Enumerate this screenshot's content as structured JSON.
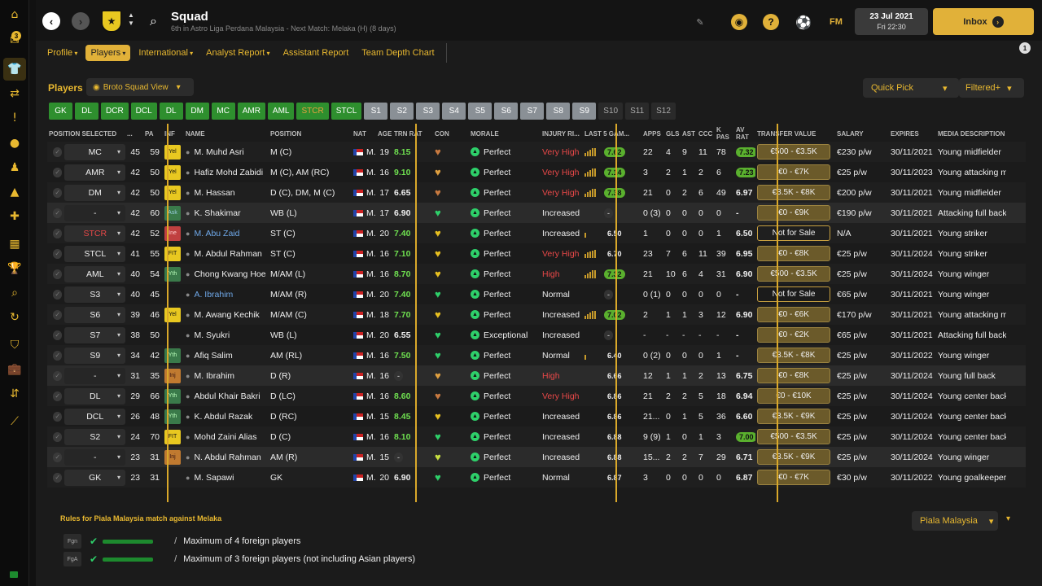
{
  "header": {
    "title": "Squad",
    "subtitle": "6th in Astro Liga Perdana Malaysia - Next Match: Melaka (H) (8 days)",
    "date": "23 Jul 2021",
    "time": "Fri 22:30",
    "inbox_label": "Inbox",
    "fm_label": "FM",
    "sidebar_badge": "3",
    "side_badge": "1"
  },
  "subnav": [
    {
      "label": "Profile",
      "dd": true
    },
    {
      "label": "Players",
      "dd": true,
      "active": true
    },
    {
      "label": "International",
      "dd": true
    },
    {
      "label": "Analyst Report",
      "dd": true
    },
    {
      "label": "Assistant Report",
      "dd": false
    },
    {
      "label": "Team Depth Chart",
      "dd": false
    }
  ],
  "players_label": "Players",
  "view_label": "Broto Squad View",
  "quick_pick": "Quick Pick",
  "filtered": "Filtered+",
  "position_tabs": [
    {
      "label": "GK",
      "s": "g"
    },
    {
      "label": "DL",
      "s": "g"
    },
    {
      "label": "DCR",
      "s": "g"
    },
    {
      "label": "DCL",
      "s": "g"
    },
    {
      "label": "DL",
      "s": "g"
    },
    {
      "label": "DM",
      "s": "g"
    },
    {
      "label": "MC",
      "s": "g"
    },
    {
      "label": "AMR",
      "s": "g"
    },
    {
      "label": "AML",
      "s": "g"
    },
    {
      "label": "STCR",
      "s": "gs"
    },
    {
      "label": "STCL",
      "s": "g"
    },
    {
      "label": "S1",
      "s": "s"
    },
    {
      "label": "S2",
      "s": "s"
    },
    {
      "label": "S3",
      "s": "s"
    },
    {
      "label": "S4",
      "s": "s"
    },
    {
      "label": "S5",
      "s": "s"
    },
    {
      "label": "S6",
      "s": "s"
    },
    {
      "label": "S7",
      "s": "s"
    },
    {
      "label": "S8",
      "s": "s"
    },
    {
      "label": "S9",
      "s": "s"
    },
    {
      "label": "S10",
      "s": "d"
    },
    {
      "label": "S11",
      "s": "d"
    },
    {
      "label": "S12",
      "s": "d"
    }
  ],
  "columns": [
    "POSITION SELECTED",
    "...",
    "PA",
    "INF",
    "NAME",
    "POSITION",
    "NAT",
    "AGE",
    "TRN RAT",
    "CON",
    "MORALE",
    "INJURY RI...",
    "LAST 5 GAM...",
    "APPS",
    "GLS",
    "AST",
    "CCC",
    "K PAS",
    "AV RAT",
    "TRANSFER VALUE",
    "SALARY",
    "EXPIRES",
    "MEDIA DESCRIPTION"
  ],
  "nat_text": "M...",
  "players": [
    {
      "pos": "MC",
      "ca": "45",
      "pa": "59",
      "inf": "Yel",
      "name": "M. Muhd Asri",
      "position": "M (C)",
      "age": "19",
      "trn": "8.15",
      "trn_c": "gr",
      "con": "#c87a40",
      "morale": "Perfect",
      "inj": "Very High",
      "inj_c": "red",
      "form": [
        4,
        6,
        8,
        10,
        10
      ],
      "last5": "7.62",
      "last5_c": "g",
      "apps": "22",
      "gls": "4",
      "ast": "9",
      "ccc": "11",
      "kpas": "78",
      "av": "7.32",
      "av_c": "g",
      "tv": "€500 - €3.5K",
      "salary": "€230 p/w",
      "exp": "30/11/2021",
      "desc": "Young midfielder"
    },
    {
      "pos": "AMR",
      "ca": "42",
      "pa": "50",
      "inf": "Yel",
      "name": "Hafiz Mohd Zabidi",
      "position": "M (C), AM (RC)",
      "age": "16",
      "trn": "9.10",
      "trn_c": "gr",
      "con": "#e0a040",
      "morale": "Perfect",
      "inj": "Very High",
      "inj_c": "red",
      "form": [
        4,
        6,
        8,
        10,
        10
      ],
      "last5": "7.14",
      "last5_c": "g",
      "apps": "3",
      "gls": "2",
      "ast": "1",
      "ccc": "2",
      "kpas": "6",
      "av": "7.23",
      "av_c": "g",
      "tv": "€0 - €7K",
      "salary": "€25 p/w",
      "exp": "30/11/2023",
      "desc": "Young attacking midfielder"
    },
    {
      "pos": "DM",
      "ca": "42",
      "pa": "50",
      "inf": "Yel",
      "name": "M. Hassan",
      "position": "D (C), DM, M (C)",
      "age": "17",
      "trn": "6.65",
      "trn_c": "",
      "con": "#c87a40",
      "morale": "Perfect",
      "inj": "Very High",
      "inj_c": "red",
      "form": [
        4,
        6,
        8,
        10,
        10
      ],
      "last5": "7.38",
      "last5_c": "g",
      "apps": "21",
      "gls": "0",
      "ast": "2",
      "ccc": "6",
      "kpas": "49",
      "av": "6.97",
      "av_c": "",
      "tv": "€3.5K - €8K",
      "salary": "€200 p/w",
      "exp": "30/11/2021",
      "desc": "Young midfielder"
    },
    {
      "pos": "-",
      "ca": "42",
      "pa": "60",
      "inf": "Ask",
      "name": "K. Shakimar",
      "position": "WB (L)",
      "age": "17",
      "trn": "6.90",
      "trn_c": "",
      "con": "#2ed06a",
      "morale": "Perfect",
      "inj": "Increased",
      "inj_c": "",
      "form": [],
      "last5": "-",
      "last5_c": "n",
      "apps": "0 (3)",
      "gls": "0",
      "ast": "0",
      "ccc": "0",
      "kpas": "0",
      "av": "-",
      "av_c": "",
      "tv": "€0 - €9K",
      "salary": "€190 p/w",
      "exp": "30/11/2021",
      "desc": "Attacking full back"
    },
    {
      "pos": "STCR",
      "ca": "42",
      "pa": "52",
      "inf": "Ine",
      "name": "M. Abu Zaid",
      "position": "ST (C)",
      "age": "20",
      "trn": "7.40",
      "trn_c": "gr",
      "con": "#e8c020",
      "morale": "Perfect",
      "inj": "Increased",
      "inj_c": "",
      "form": [
        6
      ],
      "last5": "6.50",
      "last5_c": "",
      "apps": "1",
      "gls": "0",
      "ast": "0",
      "ccc": "0",
      "kpas": "1",
      "av": "6.50",
      "av_c": "",
      "tv": "Not for Sale",
      "salary": "N/A",
      "exp": "30/11/2021",
      "desc": "Young striker",
      "link": true
    },
    {
      "pos": "STCL",
      "ca": "41",
      "pa": "55",
      "inf": "FIT",
      "name": "M. Abdul Rahman",
      "position": "ST (C)",
      "age": "16",
      "trn": "7.10",
      "trn_c": "gr",
      "con": "#e8c020",
      "morale": "Perfect",
      "inj": "Very High",
      "inj_c": "red",
      "form": [
        5,
        7,
        8,
        9,
        10
      ],
      "last5": "6.70",
      "last5_c": "",
      "apps": "23",
      "gls": "7",
      "ast": "6",
      "ccc": "11",
      "kpas": "39",
      "av": "6.95",
      "av_c": "",
      "tv": "€0 - €8K",
      "salary": "€25 p/w",
      "exp": "30/11/2024",
      "desc": "Young striker"
    },
    {
      "pos": "AML",
      "ca": "40",
      "pa": "54",
      "inf": "Yth",
      "name": "Chong Kwang Hoe",
      "position": "M/AM (L)",
      "age": "16",
      "trn": "8.70",
      "trn_c": "gr",
      "con": "#e8c020",
      "morale": "Perfect",
      "inj": "High",
      "inj_c": "red",
      "form": [
        4,
        6,
        8,
        10,
        10
      ],
      "last5": "7.32",
      "last5_c": "g",
      "apps": "21",
      "gls": "10",
      "ast": "6",
      "ccc": "4",
      "kpas": "31",
      "av": "6.90",
      "av_c": "",
      "tv": "€500 - €3.5K",
      "salary": "€25 p/w",
      "exp": "30/11/2024",
      "desc": "Young winger"
    },
    {
      "pos": "S3",
      "ca": "40",
      "pa": "45",
      "inf": "",
      "name": "A. Ibrahim",
      "position": "M/AM (R)",
      "age": "20",
      "trn": "7.40",
      "trn_c": "gr",
      "con": "#2ed06a",
      "morale": "Perfect",
      "inj": "Normal",
      "inj_c": "",
      "form": [],
      "last5": "-",
      "last5_c": "n",
      "apps": "0 (1)",
      "gls": "0",
      "ast": "0",
      "ccc": "0",
      "kpas": "0",
      "av": "-",
      "av_c": "",
      "tv": "Not for Sale",
      "salary": "€65 p/w",
      "exp": "30/11/2021",
      "desc": "Young winger",
      "link": true
    },
    {
      "pos": "S6",
      "ca": "39",
      "pa": "46",
      "inf": "Yel",
      "name": "M. Awang Kechik",
      "position": "M/AM (C)",
      "age": "18",
      "trn": "7.70",
      "trn_c": "gr",
      "con": "#e8c020",
      "morale": "Perfect",
      "inj": "Increased",
      "inj_c": "",
      "form": [
        4,
        6,
        8,
        10,
        10
      ],
      "last5": "7.02",
      "last5_c": "g",
      "apps": "2",
      "gls": "1",
      "ast": "1",
      "ccc": "3",
      "kpas": "12",
      "av": "6.90",
      "av_c": "",
      "tv": "€0 - €6K",
      "salary": "€170 p/w",
      "exp": "30/11/2021",
      "desc": "Young attacking midfielder"
    },
    {
      "pos": "S7",
      "ca": "38",
      "pa": "50",
      "inf": "",
      "name": "M. Syukri",
      "position": "WB (L)",
      "age": "20",
      "trn": "6.55",
      "trn_c": "",
      "con": "#2ed06a",
      "morale": "Exceptional",
      "inj": "Increased",
      "inj_c": "",
      "form": [],
      "last5": "-",
      "last5_c": "n",
      "apps": "-",
      "gls": "-",
      "ast": "-",
      "ccc": "-",
      "kpas": "-",
      "av": "-",
      "av_c": "",
      "tv": "€0 - €2K",
      "salary": "€65 p/w",
      "exp": "30/11/2021",
      "desc": "Attacking full back"
    },
    {
      "pos": "S9",
      "ca": "34",
      "pa": "42",
      "inf": "Yth",
      "name": "Afiq Salim",
      "position": "AM (RL)",
      "age": "16",
      "trn": "7.50",
      "trn_c": "gr",
      "con": "#2ed06a",
      "morale": "Perfect",
      "inj": "Normal",
      "inj_c": "",
      "form": [
        6
      ],
      "last5": "6.40",
      "last5_c": "",
      "apps": "0 (2)",
      "gls": "0",
      "ast": "0",
      "ccc": "0",
      "kpas": "1",
      "av": "-",
      "av_c": "",
      "tv": "€3.5K - €8K",
      "salary": "€25 p/w",
      "exp": "30/11/2022",
      "desc": "Young winger"
    },
    {
      "pos": "-",
      "ca": "31",
      "pa": "35",
      "inf": "Inj",
      "name": "M. Ibrahim",
      "position": "D (R)",
      "age": "16",
      "trn": "-",
      "trn_c": "n",
      "con": "#e0a040",
      "morale": "Perfect",
      "inj": "High",
      "inj_c": "red",
      "form": [],
      "last5": "6.66",
      "last5_c": "",
      "apps": "12",
      "gls": "1",
      "ast": "1",
      "ccc": "2",
      "kpas": "13",
      "av": "6.75",
      "av_c": "",
      "tv": "€0 - €8K",
      "salary": "€25 p/w",
      "exp": "30/11/2024",
      "desc": "Young full back"
    },
    {
      "pos": "DL",
      "ca": "29",
      "pa": "66",
      "inf": "Yth",
      "name": "Abdul Khair Bakri",
      "position": "D (LC)",
      "age": "16",
      "trn": "8.60",
      "trn_c": "gr",
      "con": "#c87a40",
      "morale": "Perfect",
      "inj": "Very High",
      "inj_c": "red",
      "form": [],
      "last5": "6.86",
      "last5_c": "",
      "apps": "21",
      "gls": "2",
      "ast": "2",
      "ccc": "5",
      "kpas": "18",
      "av": "6.94",
      "av_c": "",
      "tv": "€0 - €10K",
      "salary": "€25 p/w",
      "exp": "30/11/2024",
      "desc": "Young center back"
    },
    {
      "pos": "DCL",
      "ca": "26",
      "pa": "48",
      "inf": "Yth",
      "name": "K. Abdul Razak",
      "position": "D (RC)",
      "age": "15",
      "trn": "8.45",
      "trn_c": "gr",
      "con": "#e8c020",
      "morale": "Perfect",
      "inj": "Increased",
      "inj_c": "",
      "form": [],
      "last5": "6.86",
      "last5_c": "",
      "apps": "21...",
      "gls": "0",
      "ast": "1",
      "ccc": "5",
      "kpas": "36",
      "av": "6.60",
      "av_c": "",
      "tv": "€3.5K - €9K",
      "salary": "€25 p/w",
      "exp": "30/11/2024",
      "desc": "Young center back"
    },
    {
      "pos": "S2",
      "ca": "24",
      "pa": "70",
      "inf": "FIT",
      "name": "Mohd Zaini Alias",
      "position": "D (C)",
      "age": "16",
      "trn": "8.10",
      "trn_c": "gr",
      "con": "#2ed06a",
      "morale": "Perfect",
      "inj": "Increased",
      "inj_c": "",
      "form": [],
      "last5": "6.88",
      "last5_c": "",
      "apps": "9 (9)",
      "gls": "1",
      "ast": "0",
      "ccc": "1",
      "kpas": "3",
      "av": "7.00",
      "av_c": "g",
      "tv": "€500 - €3.5K",
      "salary": "€25 p/w",
      "exp": "30/11/2024",
      "desc": "Young center back"
    },
    {
      "pos": "-",
      "ca": "23",
      "pa": "31",
      "inf": "Inj",
      "name": "N. Abdul Rahman",
      "position": "AM (R)",
      "age": "15",
      "trn": "-",
      "trn_c": "n",
      "con": "#c8e040",
      "morale": "Perfect",
      "inj": "Increased",
      "inj_c": "",
      "form": [],
      "last5": "6.88",
      "last5_c": "",
      "apps": "15...",
      "gls": "2",
      "ast": "2",
      "ccc": "7",
      "kpas": "29",
      "av": "6.71",
      "av_c": "",
      "tv": "€3.5K - €9K",
      "salary": "€25 p/w",
      "exp": "30/11/2024",
      "desc": "Young winger"
    },
    {
      "pos": "GK",
      "ca": "23",
      "pa": "31",
      "inf": "",
      "name": "M. Sapawi",
      "position": "GK",
      "age": "20",
      "trn": "6.90",
      "trn_c": "",
      "con": "#2ed06a",
      "morale": "Perfect",
      "inj": "Normal",
      "inj_c": "",
      "form": [],
      "last5": "6.87",
      "last5_c": "",
      "apps": "3",
      "gls": "0",
      "ast": "0",
      "ccc": "0",
      "kpas": "0",
      "av": "6.87",
      "av_c": "",
      "tv": "€0 - €7K",
      "salary": "€30 p/w",
      "exp": "30/11/2022",
      "desc": "Young goalkeeper"
    }
  ],
  "rules": {
    "title": "Rules for Piala Malaysia match against Melaka",
    "items": [
      {
        "code": "Fgn",
        "text": "Maximum of 4 foreign players"
      },
      {
        "code": "FgA",
        "text": "Maximum of 3 foreign players (not including Asian players)"
      }
    ],
    "competition": "Piala Malaysia"
  }
}
